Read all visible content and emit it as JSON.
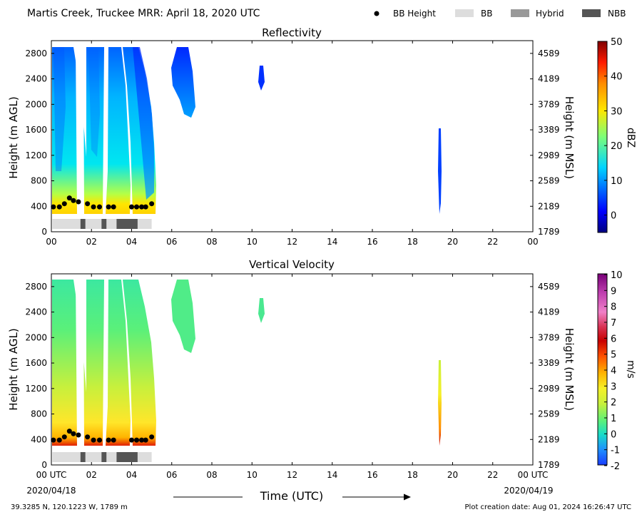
{
  "header": {
    "title": "Martis Creek, Truckee MRR:  April 18, 2020 UTC",
    "legend": [
      {
        "label": "BB Height",
        "marker": "dot",
        "color": "#000000"
      },
      {
        "label": "BB",
        "marker": "swatch",
        "color": "#dddddd"
      },
      {
        "label": "Hybrid",
        "marker": "swatch",
        "color": "#999999"
      },
      {
        "label": "NBB",
        "marker": "swatch",
        "color": "#555555"
      }
    ]
  },
  "footer": {
    "location": "39.3285 N, 120.1223 W, 1789 m",
    "creation": "Plot creation date: Aug 01, 2024 16:26:47 UTC",
    "time_label": "Time (UTC)",
    "date_start": "2020/04/18",
    "date_end": "2020/04/19"
  },
  "chart_data": [
    {
      "type": "heatmap",
      "title": "Reflectivity",
      "ylabel": "Height (m AGL)",
      "ylabel_right": "Height (m MSL)",
      "xlim": [
        0,
        24
      ],
      "ylim": [
        0,
        3000
      ],
      "x_ticks": [
        "00",
        "02",
        "04",
        "06",
        "08",
        "10",
        "12",
        "14",
        "16",
        "18",
        "20",
        "22",
        "00"
      ],
      "y_ticks": [
        0,
        400,
        800,
        1200,
        1600,
        2000,
        2400,
        2800
      ],
      "y_ticks_right": [
        1789,
        2189,
        2589,
        2989,
        3389,
        3789,
        4189,
        4589
      ],
      "colorbar": {
        "label": "dBZ",
        "min": -5,
        "max": 50,
        "ticks": [
          0,
          10,
          20,
          30,
          40,
          50
        ],
        "colormap": "jet"
      },
      "bb_height": {
        "x": [
          0.1,
          0.4,
          0.65,
          0.9,
          1.1,
          1.35,
          1.8,
          2.1,
          2.4,
          2.85,
          3.1,
          4.0,
          4.25,
          4.5,
          4.7,
          5.0
        ],
        "y": [
          390,
          390,
          440,
          530,
          490,
          470,
          440,
          390,
          390,
          390,
          390,
          390,
          390,
          390,
          390,
          440
        ]
      },
      "bb_type": [
        {
          "start": 0.05,
          "end": 1.45,
          "type": "BB"
        },
        {
          "start": 1.45,
          "end": 1.7,
          "type": "NBB"
        },
        {
          "start": 1.7,
          "end": 2.5,
          "type": "BB"
        },
        {
          "start": 2.5,
          "end": 2.75,
          "type": "NBB"
        },
        {
          "start": 2.75,
          "end": 3.25,
          "type": "BB"
        },
        {
          "start": 3.25,
          "end": 4.3,
          "type": "NBB"
        },
        {
          "start": 4.3,
          "end": 5.0,
          "type": "BB"
        }
      ]
    },
    {
      "type": "heatmap",
      "title": "Vertical Velocity",
      "ylabel": "Height (m AGL)",
      "ylabel_right": "Height (m MSL)",
      "xlim": [
        0,
        24
      ],
      "ylim": [
        0,
        3000
      ],
      "x_ticks": [
        "00 UTC",
        "02",
        "04",
        "06",
        "08",
        "10",
        "12",
        "14",
        "16",
        "18",
        "20",
        "22",
        "00 UTC"
      ],
      "y_ticks": [
        0,
        400,
        800,
        1200,
        1600,
        2000,
        2400,
        2800
      ],
      "y_ticks_right": [
        1789,
        2189,
        2589,
        2989,
        3389,
        3789,
        4189,
        4589
      ],
      "colorbar": {
        "label": "m/s",
        "min": -2,
        "max": 10,
        "ticks": [
          -2,
          -1,
          0,
          1,
          2,
          3,
          4,
          5,
          6,
          7,
          8,
          9,
          10
        ],
        "colormap": "velocity"
      },
      "bb_height": {
        "x": [
          0.1,
          0.4,
          0.65,
          0.9,
          1.1,
          1.35,
          1.8,
          2.1,
          2.4,
          2.85,
          3.1,
          4.0,
          4.25,
          4.5,
          4.7,
          5.0
        ],
        "y": [
          390,
          390,
          440,
          530,
          490,
          470,
          440,
          390,
          390,
          390,
          390,
          390,
          390,
          390,
          390,
          440
        ]
      },
      "bb_type": [
        {
          "start": 0.05,
          "end": 1.45,
          "type": "BB"
        },
        {
          "start": 1.45,
          "end": 1.7,
          "type": "NBB"
        },
        {
          "start": 1.7,
          "end": 2.5,
          "type": "BB"
        },
        {
          "start": 2.5,
          "end": 2.75,
          "type": "NBB"
        },
        {
          "start": 2.75,
          "end": 3.25,
          "type": "BB"
        },
        {
          "start": 3.25,
          "end": 4.3,
          "type": "NBB"
        },
        {
          "start": 4.3,
          "end": 5.0,
          "type": "BB"
        }
      ]
    }
  ]
}
